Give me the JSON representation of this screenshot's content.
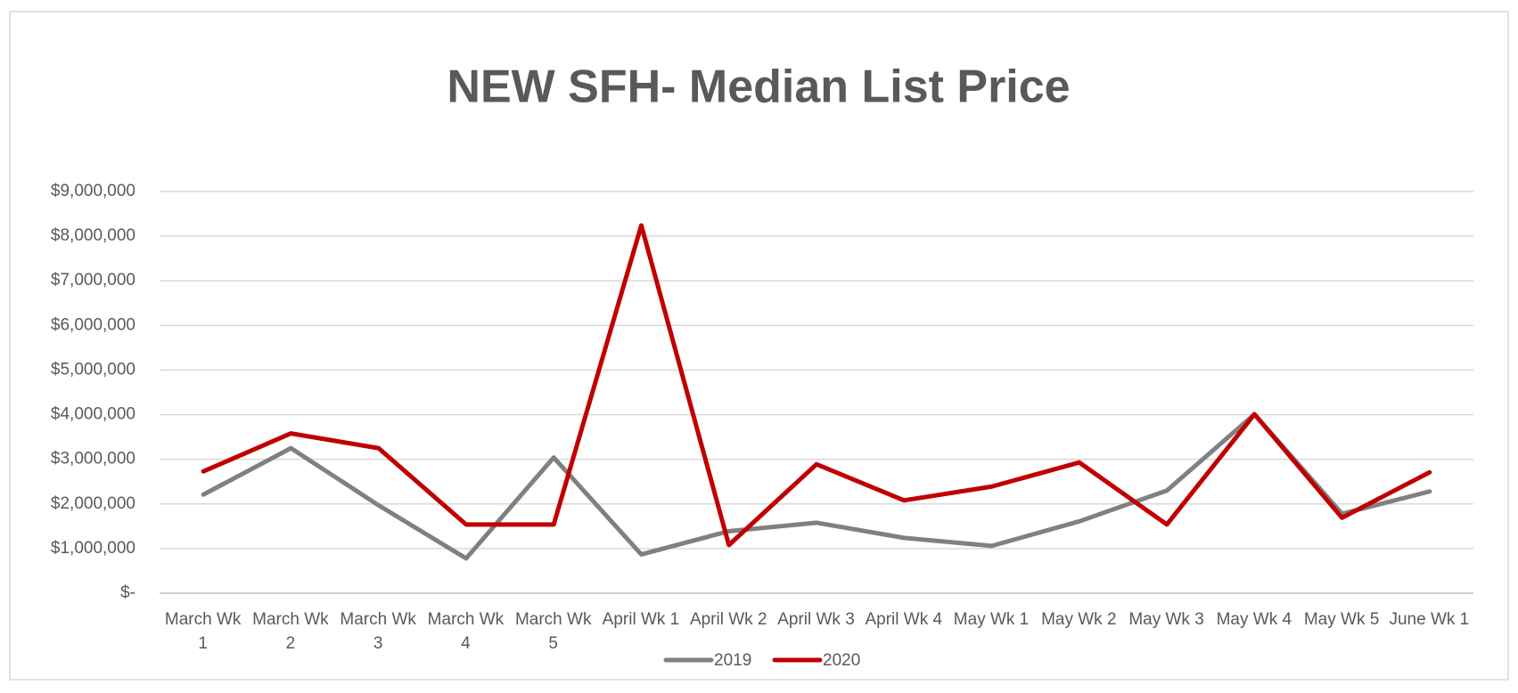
{
  "chart_data": {
    "type": "line",
    "title": "NEW SFH- Median List Price",
    "categories": [
      "March Wk 1",
      "March Wk 2",
      "March Wk 3",
      "March Wk 4",
      "March Wk 5",
      "April Wk 1",
      "April Wk 2",
      "April Wk 3",
      "April Wk 4",
      "May Wk 1",
      "May Wk 2",
      "May Wk 3",
      "May Wk 4",
      "May Wk 5",
      "June Wk 1"
    ],
    "series": [
      {
        "name": "2019",
        "color": "#808080",
        "values": [
          2210000,
          3250000,
          1970000,
          780000,
          3040000,
          870000,
          1390000,
          1580000,
          1240000,
          1060000,
          1610000,
          2300000,
          4010000,
          1780000,
          2280000
        ]
      },
      {
        "name": "2020",
        "color": "#c00000",
        "values": [
          2730000,
          3580000,
          3250000,
          1540000,
          1540000,
          8240000,
          1080000,
          2890000,
          2080000,
          2390000,
          2930000,
          1540000,
          4010000,
          1690000,
          2710000
        ]
      }
    ],
    "ylim": [
      0,
      9000000
    ],
    "yticks": [
      {
        "value": 0,
        "label": "$-"
      },
      {
        "value": 1000000,
        "label": "$1,000,000"
      },
      {
        "value": 2000000,
        "label": "$2,000,000"
      },
      {
        "value": 3000000,
        "label": "$3,000,000"
      },
      {
        "value": 4000000,
        "label": "$4,000,000"
      },
      {
        "value": 5000000,
        "label": "$5,000,000"
      },
      {
        "value": 6000000,
        "label": "$6,000,000"
      },
      {
        "value": 7000000,
        "label": "$7,000,000"
      },
      {
        "value": 8000000,
        "label": "$8,000,000"
      },
      {
        "value": 9000000,
        "label": "$9,000,000"
      }
    ],
    "grid": true,
    "legend": "bottom"
  }
}
